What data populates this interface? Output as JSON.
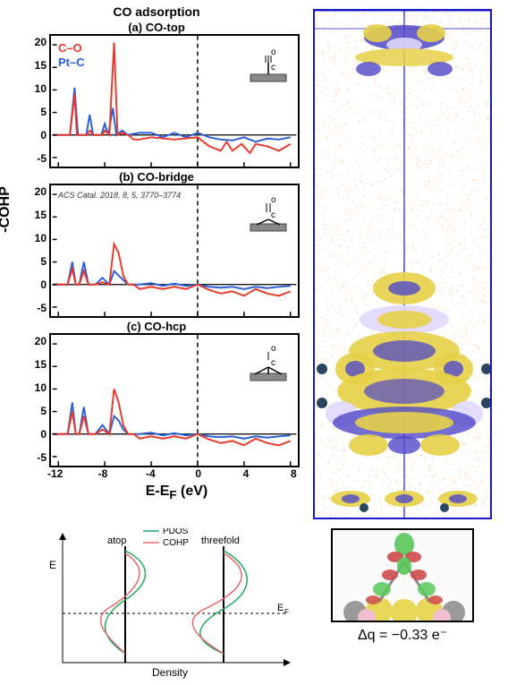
{
  "main_title": "CO adsorption",
  "panels": [
    {
      "title": "(a) CO-top",
      "site": "top"
    },
    {
      "title": "(b) CO-bridge",
      "site": "bridge"
    },
    {
      "title": "(c) CO-hcp",
      "site": "hcp"
    }
  ],
  "legend": {
    "co": {
      "text": "C–O",
      "color": "#e8382a"
    },
    "ptc": {
      "text": "Pt–C",
      "color": "#2a5fd8"
    }
  },
  "citation": "ACS Catal. 2018, 8, 5, 3770–3774",
  "axes": {
    "y_label": "-COHP",
    "x_label": "E-E",
    "x_label_sub": "F",
    "x_unit": " (eV)",
    "y_ticks": [
      -5,
      0,
      5,
      10,
      15,
      20
    ],
    "x_ticks": [
      -12,
      -8,
      -4,
      0,
      4,
      8
    ],
    "xlim": [
      -12.5,
      8.5
    ],
    "ylim": [
      -7,
      22
    ],
    "fermi_x": 0
  },
  "curves": {
    "top": {
      "co": [
        [
          -12.5,
          0
        ],
        [
          -11,
          0
        ],
        [
          -10.6,
          9
        ],
        [
          -10.4,
          0
        ],
        [
          -9.5,
          0
        ],
        [
          -9.3,
          1
        ],
        [
          -9,
          0
        ],
        [
          -8.2,
          0
        ],
        [
          -8,
          1
        ],
        [
          -7.6,
          0
        ],
        [
          -7.2,
          20.5
        ],
        [
          -6.9,
          0
        ],
        [
          -6.5,
          0.5
        ],
        [
          -6,
          0
        ],
        [
          -5.5,
          -1
        ],
        [
          -5,
          -1
        ],
        [
          -4,
          -0.5
        ],
        [
          -2,
          -1
        ],
        [
          0,
          -0.5
        ],
        [
          1,
          -2.5
        ],
        [
          2,
          -3.5
        ],
        [
          2.5,
          -1.5
        ],
        [
          3,
          -3.5
        ],
        [
          3.8,
          -2
        ],
        [
          4.5,
          -4
        ],
        [
          5,
          -2
        ],
        [
          6,
          -2.5
        ],
        [
          7,
          -3.5
        ],
        [
          8,
          -2
        ]
      ],
      "ptc": [
        [
          -12.5,
          0
        ],
        [
          -11,
          0
        ],
        [
          -10.6,
          10.5
        ],
        [
          -10.3,
          0
        ],
        [
          -9.6,
          0
        ],
        [
          -9.3,
          4.5
        ],
        [
          -9,
          0
        ],
        [
          -8.3,
          0
        ],
        [
          -8,
          2.5
        ],
        [
          -7.7,
          0
        ],
        [
          -7.3,
          6
        ],
        [
          -7,
          0
        ],
        [
          -6.5,
          1
        ],
        [
          -6,
          0
        ],
        [
          -5,
          0.5
        ],
        [
          -4,
          0.5
        ],
        [
          -3,
          -0.5
        ],
        [
          -2,
          0.5
        ],
        [
          -1,
          -0.5
        ],
        [
          0,
          0.5
        ],
        [
          1,
          -0.5
        ],
        [
          2,
          -1
        ],
        [
          3,
          -1.2
        ],
        [
          4,
          -0.5
        ],
        [
          5,
          -1.5
        ],
        [
          6,
          -0.8
        ],
        [
          7,
          -1
        ],
        [
          8,
          -0.5
        ]
      ]
    },
    "bridge": {
      "co": [
        [
          -12.5,
          0
        ],
        [
          -11.2,
          0
        ],
        [
          -10.8,
          3.5
        ],
        [
          -10.5,
          0
        ],
        [
          -10.2,
          0
        ],
        [
          -9.8,
          3
        ],
        [
          -9.4,
          0
        ],
        [
          -8.8,
          0
        ],
        [
          -8.2,
          0.5
        ],
        [
          -7.6,
          0
        ],
        [
          -7.2,
          9
        ],
        [
          -6.8,
          7
        ],
        [
          -6.4,
          2
        ],
        [
          -6,
          0
        ],
        [
          -5.5,
          0
        ],
        [
          -5,
          -1
        ],
        [
          -4,
          -0.5
        ],
        [
          -3,
          -1
        ],
        [
          -2,
          -0.5
        ],
        [
          -1,
          -1
        ],
        [
          0,
          0
        ],
        [
          1,
          -1.2
        ],
        [
          2,
          -2
        ],
        [
          3,
          -1.5
        ],
        [
          4,
          -2.5
        ],
        [
          5,
          -1
        ],
        [
          6,
          -2
        ],
        [
          7,
          -2.5
        ],
        [
          8,
          -1.5
        ]
      ],
      "ptc": [
        [
          -12.5,
          0
        ],
        [
          -11.2,
          0
        ],
        [
          -10.8,
          5
        ],
        [
          -10.5,
          0
        ],
        [
          -10.2,
          0
        ],
        [
          -9.8,
          5
        ],
        [
          -9.4,
          0
        ],
        [
          -8.8,
          0
        ],
        [
          -8.2,
          1.5
        ],
        [
          -7.6,
          0
        ],
        [
          -7.2,
          3
        ],
        [
          -6.8,
          2
        ],
        [
          -6.4,
          1
        ],
        [
          -6,
          0
        ],
        [
          -5,
          0
        ],
        [
          -4,
          0.3
        ],
        [
          -3,
          -0.3
        ],
        [
          -2,
          0.2
        ],
        [
          -1,
          -0.3
        ],
        [
          0,
          0
        ],
        [
          1,
          -0.5
        ],
        [
          2,
          -0.7
        ],
        [
          3,
          -0.5
        ],
        [
          4,
          -1
        ],
        [
          5,
          -0.5
        ],
        [
          6,
          -0.8
        ],
        [
          7,
          -0.5
        ],
        [
          8,
          -0.3
        ]
      ]
    },
    "hcp": {
      "co": [
        [
          -12.5,
          0
        ],
        [
          -11.2,
          0
        ],
        [
          -10.8,
          5
        ],
        [
          -10.5,
          0
        ],
        [
          -10.2,
          0
        ],
        [
          -9.8,
          4
        ],
        [
          -9.4,
          0
        ],
        [
          -8.8,
          0
        ],
        [
          -8.2,
          1
        ],
        [
          -7.6,
          0
        ],
        [
          -7.2,
          10
        ],
        [
          -6.8,
          7
        ],
        [
          -6.4,
          2
        ],
        [
          -6,
          0
        ],
        [
          -5.5,
          0
        ],
        [
          -5,
          -1
        ],
        [
          -4,
          -0.5
        ],
        [
          -3,
          -1
        ],
        [
          -2,
          -0.5
        ],
        [
          -1,
          -1
        ],
        [
          0,
          0
        ],
        [
          1,
          -1.2
        ],
        [
          2,
          -2
        ],
        [
          3,
          -1.5
        ],
        [
          4,
          -2.5
        ],
        [
          5,
          -1
        ],
        [
          6,
          -2
        ],
        [
          7,
          -2.5
        ],
        [
          8,
          -1.5
        ]
      ],
      "ptc": [
        [
          -12.5,
          0
        ],
        [
          -11.2,
          0
        ],
        [
          -10.8,
          7
        ],
        [
          -10.5,
          0
        ],
        [
          -10.2,
          0
        ],
        [
          -9.8,
          6
        ],
        [
          -9.4,
          0
        ],
        [
          -8.8,
          0
        ],
        [
          -8.2,
          2
        ],
        [
          -7.6,
          0
        ],
        [
          -7.2,
          4
        ],
        [
          -6.8,
          3
        ],
        [
          -6.4,
          1
        ],
        [
          -6,
          0
        ],
        [
          -5,
          0
        ],
        [
          -4,
          0.3
        ],
        [
          -3,
          -0.3
        ],
        [
          -2,
          0.2
        ],
        [
          -1,
          -0.3
        ],
        [
          0,
          0
        ],
        [
          1,
          -0.5
        ],
        [
          2,
          -0.7
        ],
        [
          3,
          -0.5
        ],
        [
          4,
          -1
        ],
        [
          5,
          -0.5
        ],
        [
          6,
          -0.8
        ],
        [
          7,
          -0.5
        ],
        [
          8,
          -0.3
        ]
      ]
    }
  },
  "schematic": {
    "legend": {
      "pdos": "PDOS",
      "cohp": "COHP"
    },
    "pdos_color": "#1fa860",
    "cohp_color": "#e66a6a",
    "left_label": "atop",
    "right_label": "threefold",
    "y_axis": "E",
    "x_axis": "Density",
    "ef_label": "E",
    "ef_sub": "F"
  },
  "render": {
    "box_color": "#1818c8",
    "orange_dot_color": "#f5a05a",
    "iso_colors": {
      "pos": "#e6d048",
      "neg": "#5048c8",
      "neg2": "#e0d8ff"
    },
    "atom_color": "#2a4560"
  },
  "orbital": {
    "atom_colors": {
      "a": "#e8d85a",
      "b": "#9a9a9a",
      "c": "#f0c0d0"
    },
    "lobe_colors": {
      "pos": "#58c858",
      "neg": "#d04a4a"
    }
  },
  "delta_q": "Δq = −0.33 e⁻"
}
